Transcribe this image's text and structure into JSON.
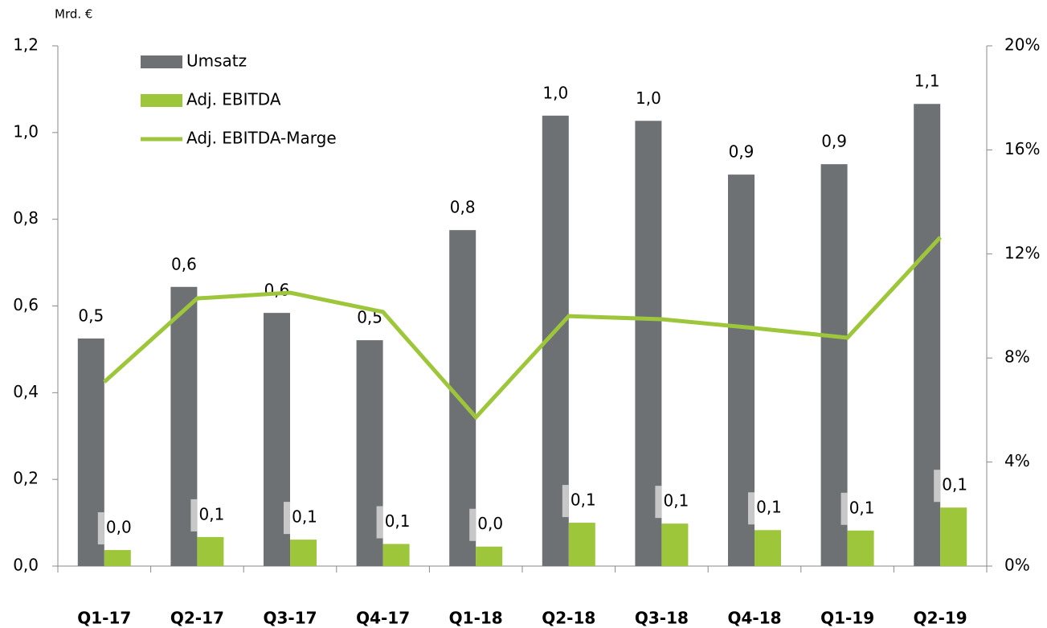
{
  "chart_data": {
    "type": "bar_line",
    "y_axis_label": "Mrd. €",
    "categories": [
      "Q1-17",
      "Q2-17",
      "Q3-17",
      "Q4-17",
      "Q1-18",
      "Q2-18",
      "Q3-18",
      "Q4-18",
      "Q1-19",
      "Q2-19"
    ],
    "series": [
      {
        "name": "Umsatz",
        "type": "bar",
        "color": "#6d7174",
        "values": [
          0.525,
          0.644,
          0.584,
          0.521,
          0.775,
          1.039,
          1.027,
          0.903,
          0.927,
          1.066
        ],
        "value_labels": [
          "0,5",
          "0,6",
          "0,6",
          "0,5",
          "0,8",
          "1,0",
          "1,0",
          "0,9",
          "0,9",
          "1,1"
        ]
      },
      {
        "name": "Adj. EBITDA",
        "type": "bar",
        "color": "#9dc63b",
        "values": [
          0.037,
          0.067,
          0.061,
          0.051,
          0.045,
          0.1,
          0.098,
          0.083,
          0.082,
          0.135
        ],
        "value_labels": [
          "0,0",
          "0,1",
          "0,1",
          "0,1",
          "0,0",
          "0,1",
          "0,1",
          "0,1",
          "0,1",
          "0,1"
        ]
      },
      {
        "name": "Adj. EBITDA-Marge",
        "type": "line",
        "axis": "y2",
        "color": "#9dc63b",
        "values": [
          7.08,
          10.29,
          10.51,
          9.77,
          5.72,
          9.61,
          9.49,
          9.15,
          8.78,
          12.64
        ]
      }
    ],
    "ylim": [
      0,
      1.2
    ],
    "yticks": [
      {
        "value": 0,
        "label": "0,0"
      },
      {
        "value": 0.2,
        "label": "0,2"
      },
      {
        "value": 0.4,
        "label": "0,4"
      },
      {
        "value": 0.6,
        "label": "0,6"
      },
      {
        "value": 0.8,
        "label": "0,8"
      },
      {
        "value": 1.0,
        "label": "1,0"
      },
      {
        "value": 1.2,
        "label": "1,2"
      }
    ],
    "y2lim": [
      0,
      20
    ],
    "y2ticks": [
      {
        "value": 0,
        "label": "0%"
      },
      {
        "value": 4,
        "label": "4%"
      },
      {
        "value": 8,
        "label": "8%"
      },
      {
        "value": 12,
        "label": "12%"
      },
      {
        "value": 16,
        "label": "16%"
      },
      {
        "value": 20,
        "label": "20%"
      }
    ],
    "legend": "upper left",
    "grid": false
  }
}
